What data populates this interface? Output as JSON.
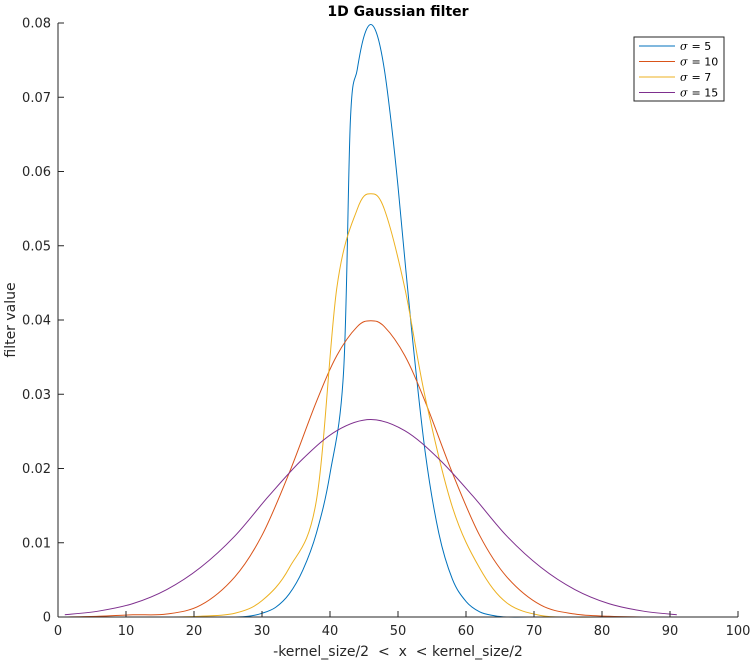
{
  "chart_data": {
    "type": "line",
    "title": "1D Gaussian filter",
    "xlabel": "-kernel_size/2  <  x  < kernel_size/2",
    "ylabel": "filter value",
    "xlim": [
      0,
      100
    ],
    "ylim": [
      0,
      0.08
    ],
    "xticks": [
      "0",
      "10",
      "20",
      "30",
      "40",
      "50",
      "60",
      "70",
      "80",
      "90",
      "100"
    ],
    "yticks": [
      "0",
      "0.01",
      "0.02",
      "0.03",
      "0.04",
      "0.05",
      "0.06",
      "0.07",
      "0.08"
    ],
    "grid": false,
    "legend_position": "top-right",
    "series": [
      {
        "legend_symbol": "σ",
        "legend_value": "= 5",
        "color": "#0072bd",
        "x": [
          1,
          6,
          11,
          16,
          21,
          26,
          28,
          30,
          32,
          34,
          36,
          38,
          40,
          42,
          43,
          44,
          45,
          46,
          47,
          48,
          49,
          50,
          52,
          54,
          56,
          58,
          60,
          62,
          64,
          66,
          71,
          76,
          81,
          86,
          91
        ],
        "y": [
          0.0,
          0.0,
          0.0,
          0.0,
          0.0,
          0.0,
          0.0001,
          0.0005,
          0.0013,
          0.0031,
          0.0063,
          0.0113,
          0.0193,
          0.0331,
          0.0669,
          0.0737,
          0.0782,
          0.0798,
          0.0782,
          0.0737,
          0.0666,
          0.058,
          0.0387,
          0.0222,
          0.0113,
          0.0051,
          0.0021,
          0.0007,
          0.0002,
          0.0,
          0.0,
          0.0,
          0.0,
          0.0,
          0.0
        ]
      },
      {
        "legend_symbol": "σ",
        "legend_value": "= 10",
        "color": "#d95319",
        "x": [
          1,
          6,
          11,
          16,
          21,
          26,
          30,
          34,
          38,
          41,
          44,
          46,
          48,
          51,
          54,
          58,
          62,
          66,
          71,
          76,
          81,
          86,
          91
        ],
        "y": [
          0.0,
          0.0001,
          0.0003,
          0.0004,
          0.0016,
          0.0054,
          0.011,
          0.0194,
          0.029,
          0.0352,
          0.0391,
          0.0399,
          0.0391,
          0.0352,
          0.029,
          0.0194,
          0.011,
          0.0054,
          0.0016,
          0.0004,
          0.0001,
          0.0,
          0.0
        ]
      },
      {
        "legend_symbol": "σ",
        "legend_value": "= 7",
        "color": "#edb120",
        "x": [
          1,
          6,
          11,
          16,
          21,
          26,
          30,
          34,
          38,
          41,
          44,
          46,
          48,
          51,
          54,
          58,
          62,
          66,
          71,
          76,
          81,
          86,
          91
        ],
        "y": [
          0.0,
          0.0,
          0.0,
          0.0,
          0.0001,
          0.0005,
          0.0022,
          0.0066,
          0.0157,
          0.0443,
          0.0549,
          0.057,
          0.0549,
          0.0443,
          0.0296,
          0.0148,
          0.0066,
          0.0019,
          0.0002,
          0.0,
          0.0,
          0.0,
          0.0
        ]
      },
      {
        "legend_symbol": "σ",
        "legend_value": "= 15",
        "color": "#7e2f8e",
        "x": [
          1,
          6,
          11,
          16,
          21,
          26,
          31,
          36,
          41,
          46,
          51,
          56,
          61,
          66,
          71,
          76,
          81,
          86,
          91
        ],
        "y": [
          0.0003,
          0.0008,
          0.0018,
          0.0037,
          0.0067,
          0.0109,
          0.0163,
          0.0213,
          0.0251,
          0.0266,
          0.0251,
          0.0213,
          0.0163,
          0.0109,
          0.0067,
          0.0037,
          0.0018,
          0.0008,
          0.0003
        ]
      }
    ]
  }
}
